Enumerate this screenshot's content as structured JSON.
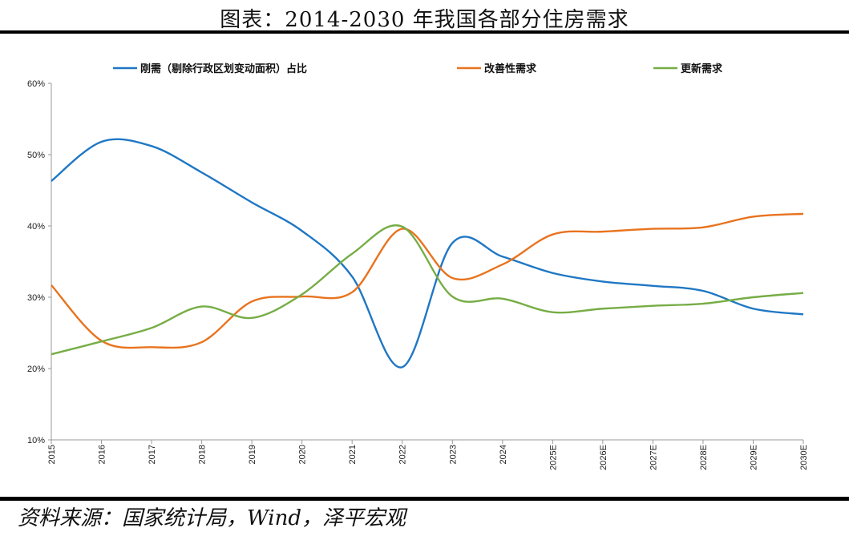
{
  "title": "图表：2014-2030 年我国各部分住房需求",
  "source": "资料来源：国家统计局，Wind，泽平宏观",
  "chart_data": {
    "type": "line",
    "title": "图表：2014-2030 年我国各部分住房需求",
    "xlabel": "",
    "ylabel": "",
    "categories": [
      "2015",
      "2016",
      "2017",
      "2018",
      "2019",
      "2020",
      "2021",
      "2022",
      "2023",
      "2024",
      "2025E",
      "2026E",
      "2027E",
      "2028E",
      "2029E",
      "2030E"
    ],
    "yticks": [
      "10%",
      "20%",
      "30%",
      "40%",
      "50%",
      "60%"
    ],
    "ylim": [
      10,
      60
    ],
    "grid": false,
    "legend": "top",
    "smooth": true,
    "series": [
      {
        "name": "刚需（剔除行政区划变动面积）占比",
        "color": "#1f77c4",
        "values": [
          46.3,
          51.8,
          51.2,
          47.5,
          43.3,
          39.3,
          32.9,
          20.2,
          37.6,
          35.7,
          33.4,
          32.2,
          31.6,
          30.9,
          28.4,
          27.6
        ]
      },
      {
        "name": "改善性需求",
        "color": "#e8731e",
        "values": [
          31.7,
          23.9,
          23.0,
          23.7,
          29.4,
          30.1,
          30.7,
          39.6,
          32.7,
          34.6,
          38.8,
          39.2,
          39.6,
          39.8,
          41.3,
          41.7
        ]
      },
      {
        "name": "更新需求",
        "color": "#76ad45",
        "values": [
          22.0,
          23.8,
          25.7,
          28.7,
          27.1,
          30.4,
          36.1,
          39.9,
          30.1,
          29.8,
          27.9,
          28.4,
          28.8,
          29.1,
          30.0,
          30.6
        ]
      }
    ]
  }
}
